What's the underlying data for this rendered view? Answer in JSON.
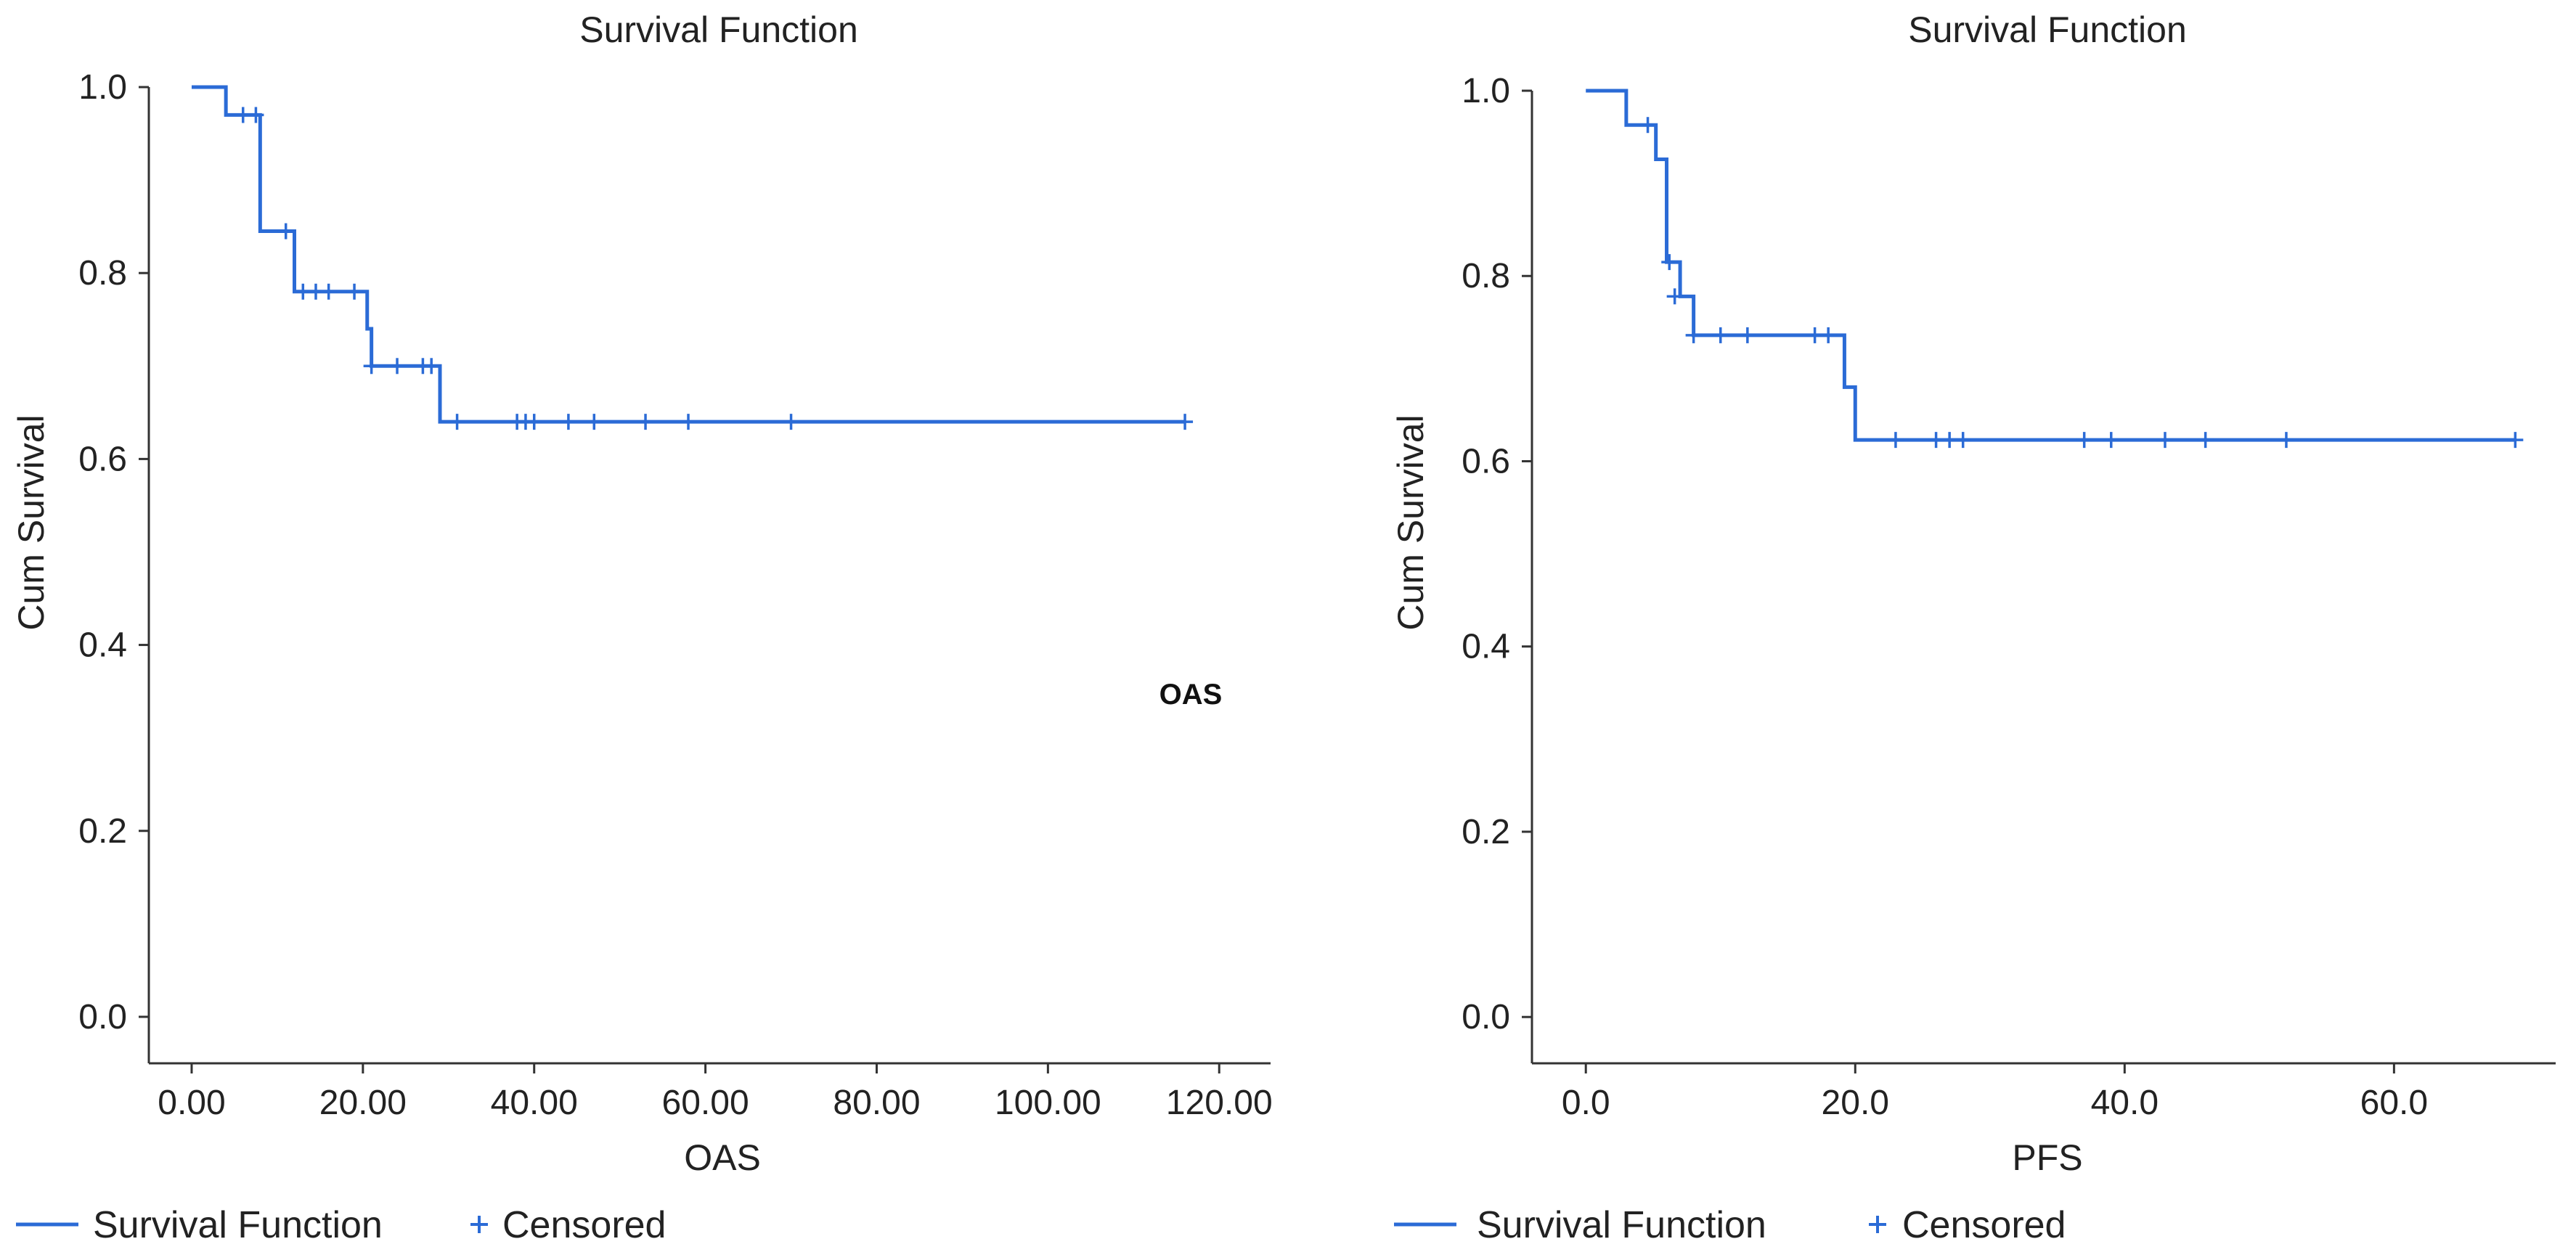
{
  "colors": {
    "curve": "#2b6bd6",
    "axis": "#333333"
  },
  "chart_data": [
    {
      "type": "line",
      "title": "Survival Function",
      "xlabel": "OAS",
      "ylabel": "Cum Survival",
      "annotation": "OAS",
      "xlim": [
        -5,
        126
      ],
      "ylim": [
        -0.05,
        1.0
      ],
      "xticks": [
        0,
        20,
        40,
        60,
        80,
        100,
        120
      ],
      "xtick_labels": [
        "0.00",
        "20.00",
        "40.00",
        "60.00",
        "80.00",
        "100.00",
        "120.00"
      ],
      "yticks": [
        0.0,
        0.2,
        0.4,
        0.6,
        0.8,
        1.0
      ],
      "ytick_labels": [
        "0.0",
        "0.2",
        "0.4",
        "0.6",
        "0.8",
        "1.0"
      ],
      "legend": {
        "placement": "bottom-left",
        "entries": [
          "Survival Function",
          "Censored"
        ]
      },
      "series": [
        {
          "name": "Survival Function",
          "x": [
            0,
            4,
            8,
            12,
            20.5,
            21,
            29,
            116
          ],
          "y": [
            1.0,
            0.97,
            0.845,
            0.78,
            0.74,
            0.7,
            0.64,
            0.64
          ],
          "censored": [
            {
              "x": 6,
              "y": 0.97
            },
            {
              "x": 7.5,
              "y": 0.97
            },
            {
              "x": 11,
              "y": 0.845
            },
            {
              "x": 13,
              "y": 0.78
            },
            {
              "x": 14.5,
              "y": 0.78
            },
            {
              "x": 16,
              "y": 0.78
            },
            {
              "x": 19,
              "y": 0.78
            },
            {
              "x": 21,
              "y": 0.7
            },
            {
              "x": 24,
              "y": 0.7
            },
            {
              "x": 27,
              "y": 0.7
            },
            {
              "x": 28,
              "y": 0.7
            },
            {
              "x": 31,
              "y": 0.64
            },
            {
              "x": 38,
              "y": 0.64
            },
            {
              "x": 39,
              "y": 0.64
            },
            {
              "x": 40,
              "y": 0.64
            },
            {
              "x": 44,
              "y": 0.64
            },
            {
              "x": 47,
              "y": 0.64
            },
            {
              "x": 53,
              "y": 0.64
            },
            {
              "x": 58,
              "y": 0.64
            },
            {
              "x": 70,
              "y": 0.64
            },
            {
              "x": 116,
              "y": 0.64
            }
          ]
        }
      ]
    },
    {
      "type": "line",
      "title": "Survival Function",
      "xlabel": "PFS",
      "ylabel": "Cum Survival",
      "annotation": "",
      "xlim": [
        -4,
        72
      ],
      "ylim": [
        -0.05,
        1.0
      ],
      "xticks": [
        0,
        20,
        40,
        60
      ],
      "xtick_labels": [
        "0.0",
        "20.0",
        "40.0",
        "60.0"
      ],
      "yticks": [
        0.0,
        0.2,
        0.4,
        0.6,
        0.8,
        1.0
      ],
      "ytick_labels": [
        "0.0",
        "0.2",
        "0.4",
        "0.6",
        "0.8",
        "1.0"
      ],
      "legend": {
        "placement": "bottom-left",
        "entries": [
          "Survival Function",
          "Censored"
        ]
      },
      "series": [
        {
          "name": "Survival Function",
          "x": [
            0,
            3,
            5.2,
            6,
            7,
            8,
            19.2,
            20,
            69
          ],
          "y": [
            1.0,
            0.963,
            0.926,
            0.815,
            0.778,
            0.736,
            0.68,
            0.623,
            0.623
          ],
          "censored": [
            {
              "x": 4.6,
              "y": 0.963
            },
            {
              "x": 6.2,
              "y": 0.815
            },
            {
              "x": 6.6,
              "y": 0.778
            },
            {
              "x": 8,
              "y": 0.736
            },
            {
              "x": 10,
              "y": 0.736
            },
            {
              "x": 12,
              "y": 0.736
            },
            {
              "x": 17,
              "y": 0.736
            },
            {
              "x": 18,
              "y": 0.736
            },
            {
              "x": 23,
              "y": 0.623
            },
            {
              "x": 26,
              "y": 0.623
            },
            {
              "x": 27,
              "y": 0.623
            },
            {
              "x": 28,
              "y": 0.623
            },
            {
              "x": 37,
              "y": 0.623
            },
            {
              "x": 39,
              "y": 0.623
            },
            {
              "x": 43,
              "y": 0.623
            },
            {
              "x": 46,
              "y": 0.623
            },
            {
              "x": 52,
              "y": 0.623
            },
            {
              "x": 69,
              "y": 0.623
            }
          ]
        }
      ]
    }
  ]
}
